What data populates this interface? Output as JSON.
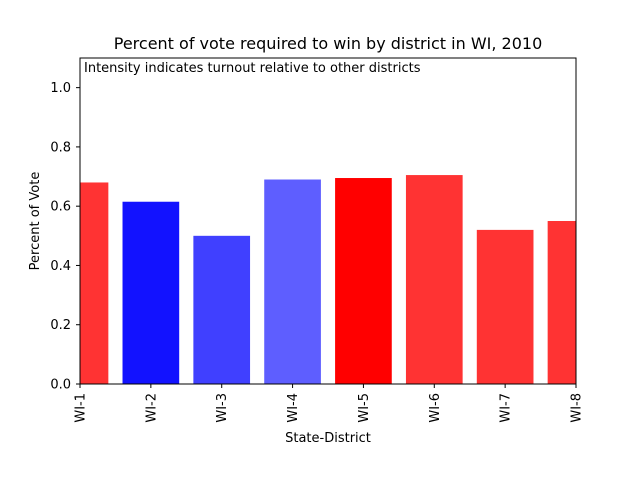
{
  "chart_data": {
    "type": "bar",
    "title": "Percent of vote required to win by district in WI, 2010",
    "annotation": "Intensity indicates turnout relative to other districts",
    "xlabel": "State-District",
    "ylabel": "Percent of Vote",
    "ylim": [
      0,
      1.1
    ],
    "yticks": [
      "0.0",
      "0.2",
      "0.4",
      "0.6",
      "0.8",
      "1.0"
    ],
    "grid": false,
    "categories": [
      "WI-1",
      "WI-2",
      "WI-3",
      "WI-4",
      "WI-5",
      "WI-6",
      "WI-7",
      "WI-8"
    ],
    "values": [
      0.68,
      0.615,
      0.5,
      0.69,
      0.695,
      0.705,
      0.52,
      0.55
    ],
    "colors": [
      "#ff0000",
      "#0000ff",
      "#0000ff",
      "#0000ff",
      "#ff0000",
      "#ff0000",
      "#ff0000",
      "#ff0000"
    ],
    "opacity": [
      0.8,
      0.93,
      0.75,
      0.63,
      1.0,
      0.8,
      0.8,
      0.8
    ]
  }
}
